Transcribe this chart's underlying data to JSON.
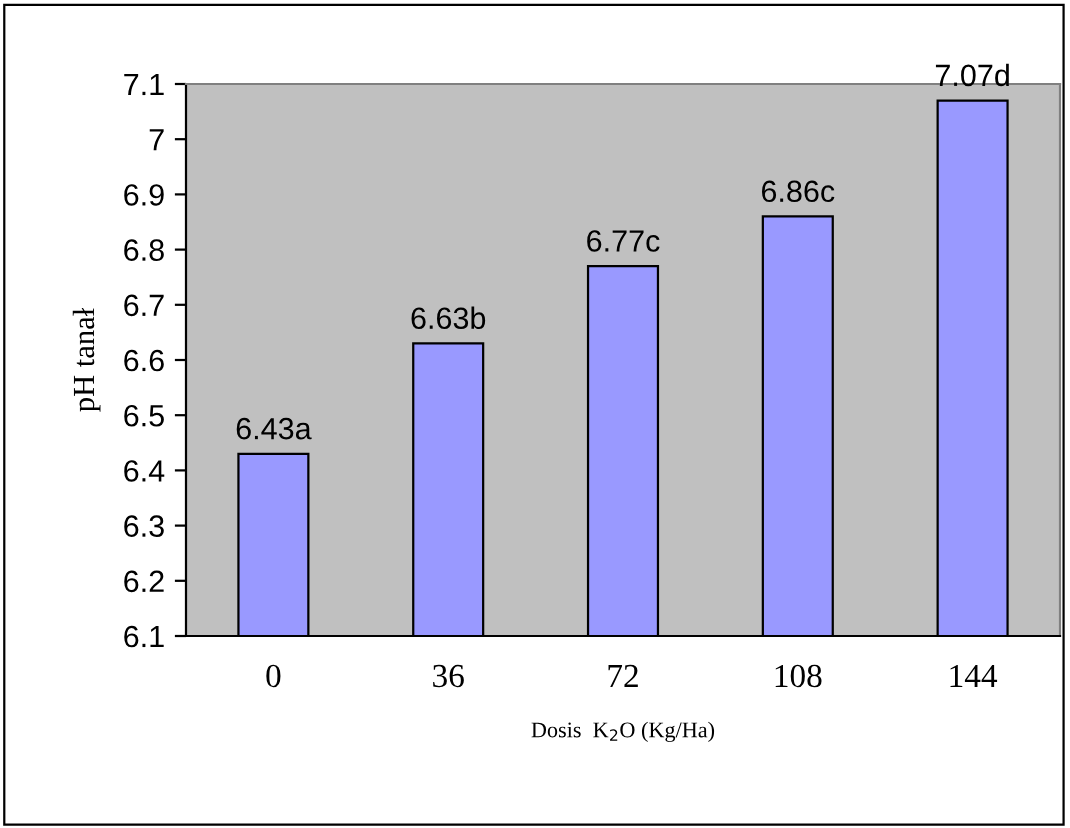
{
  "chart_data": {
    "type": "bar",
    "xlabel": "Dosis  K$_{2}$O (Kg/Ha)",
    "ylabel": "pH tanał",
    "categories": [
      "0",
      "36",
      "72",
      "108",
      "144"
    ],
    "values": [
      6.43,
      6.63,
      6.77,
      6.86,
      7.07
    ],
    "value_labels": [
      "6.43a",
      "6.63b",
      "6.77c",
      "6.86c",
      "7.07d"
    ],
    "color": "#9999ff",
    "ylim": [
      6.1,
      7.1
    ],
    "yticks": [
      6.1,
      6.2,
      6.3,
      6.4,
      6.5,
      6.6,
      6.7,
      6.8,
      6.9,
      7,
      7.1
    ],
    "grid": false,
    "legend": false
  }
}
